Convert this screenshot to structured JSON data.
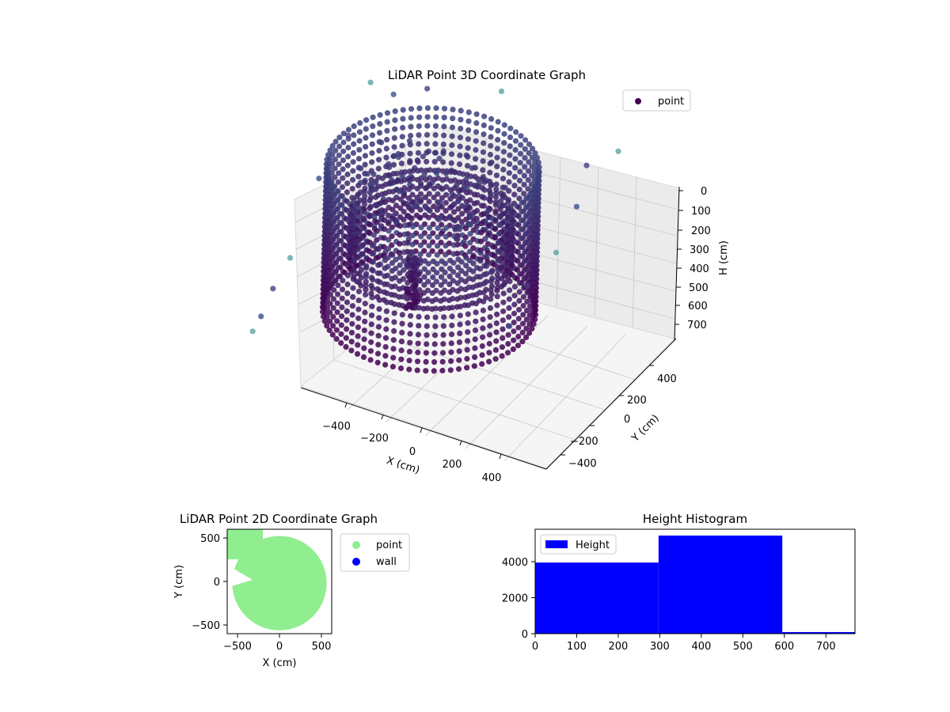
{
  "colors": {
    "dark_point": "#440154",
    "mid_point": "#3b528b",
    "teal_point": "#5ea3a3",
    "scatter_point": "#90ee90",
    "wall": "#0000ff",
    "bar": "#0000ff"
  },
  "chart_data": [
    {
      "type": "scatter3d",
      "title": "LiDAR Point 3D Coordinate Graph",
      "xlabel": "X (cm)",
      "ylabel": "Y (cm)",
      "zlabel": "H (cm)",
      "x_ticks": [
        "−400",
        "−200",
        "0",
        "200",
        "400"
      ],
      "y_ticks": [
        "400",
        "200",
        "0",
        "−200",
        "−400"
      ],
      "z_ticks": [
        "0",
        "100",
        "200",
        "300",
        "400",
        "500",
        "600",
        "700"
      ],
      "xlim": [
        -560,
        560
      ],
      "ylim": [
        -560,
        560
      ],
      "zlim": [
        0,
        760
      ],
      "z_inverted": true,
      "legend": [
        {
          "name": "point"
        }
      ],
      "legend_position": "top-right",
      "colormap": "viridis",
      "structure": {
        "inner_ring_radius": 320,
        "outer_ring_radius": 420,
        "inner_ring_height": [
          240,
          480
        ],
        "outer_ring_height": [
          0,
          720
        ],
        "center_column_x": -40,
        "center_column_y": 60,
        "center_column_height": [
          40,
          300
        ]
      },
      "outliers": [
        {
          "x": -530,
          "y": 480,
          "h": 0
        },
        {
          "x": -500,
          "y": 470,
          "h": 80
        },
        {
          "x": -540,
          "y": 300,
          "h": 100
        },
        {
          "x": -520,
          "y": 200,
          "h": 200
        },
        {
          "x": -560,
          "y": -100,
          "h": 400
        },
        {
          "x": -540,
          "y": -300,
          "h": 500
        },
        {
          "x": -500,
          "y": -400,
          "h": 720
        },
        {
          "x": -460,
          "y": -520,
          "h": 600
        },
        {
          "x": -300,
          "y": -500,
          "h": 700
        },
        {
          "x": 0,
          "y": -560,
          "h": 760
        },
        {
          "x": 520,
          "y": 300,
          "h": 300
        },
        {
          "x": 540,
          "y": 200,
          "h": 450
        },
        {
          "x": 560,
          "y": 0,
          "h": 500
        },
        {
          "x": 540,
          "y": -200,
          "h": 600
        },
        {
          "x": 500,
          "y": -350,
          "h": 700
        },
        {
          "x": 560,
          "y": -500,
          "h": 700
        }
      ]
    },
    {
      "type": "scatter",
      "title": "LiDAR Point 2D Coordinate Graph",
      "xlabel": "X (cm)",
      "ylabel": "Y (cm)",
      "x_ticks": [
        "−500",
        "0",
        "500"
      ],
      "y_ticks": [
        "500",
        "0",
        "−500"
      ],
      "xlim": [
        -620,
        620
      ],
      "ylim": [
        -620,
        620
      ],
      "legend": [
        {
          "name": "point"
        },
        {
          "name": "wall"
        }
      ],
      "legend_position": "outside-right",
      "disc": {
        "cx": 0,
        "cy": -20,
        "r": 560
      }
    },
    {
      "type": "bar",
      "title": "Height Histogram",
      "xlabel": "",
      "ylabel": "",
      "x_ticks": [
        "0",
        "100",
        "200",
        "300",
        "400",
        "500",
        "600",
        "700"
      ],
      "y_ticks": [
        "0",
        "2000",
        "4000"
      ],
      "xlim": [
        0,
        770
      ],
      "ylim": [
        0,
        5800
      ],
      "legend": [
        {
          "name": "Height"
        }
      ],
      "legend_position": "top-left",
      "bins": [
        {
          "start": 0,
          "end": 297,
          "value": 3950
        },
        {
          "start": 297,
          "end": 595,
          "value": 5450
        },
        {
          "start": 595,
          "end": 770,
          "value": 90
        }
      ]
    }
  ]
}
